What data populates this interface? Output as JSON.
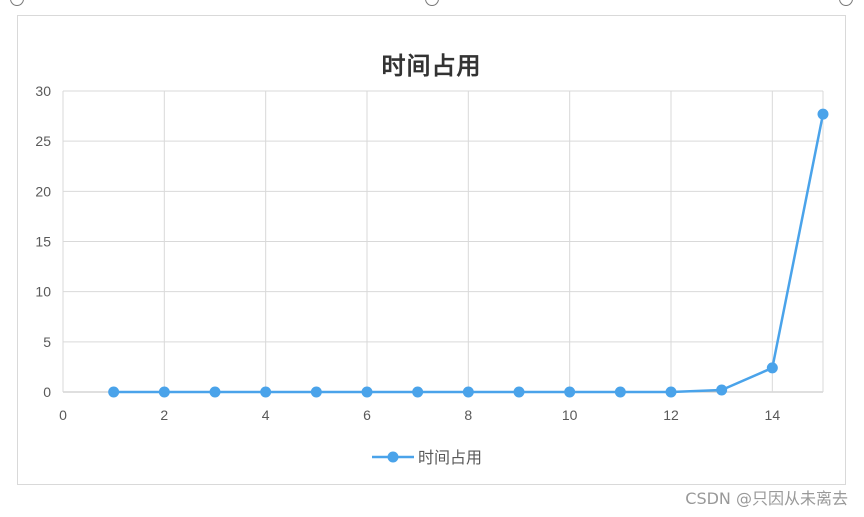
{
  "chart_data": {
    "type": "line",
    "title": "时间占用",
    "xlabel": "",
    "ylabel": "",
    "xlim": [
      0,
      15
    ],
    "ylim": [
      0,
      30
    ],
    "x_ticks": [
      0,
      2,
      4,
      6,
      8,
      10,
      12,
      14
    ],
    "y_ticks": [
      0,
      5,
      10,
      15,
      20,
      25,
      30
    ],
    "grid": true,
    "legend_position": "bottom",
    "series": [
      {
        "name": "时间占用",
        "color": "#4aa3ea",
        "x": [
          1,
          2,
          3,
          4,
          5,
          6,
          7,
          8,
          9,
          10,
          11,
          12,
          13,
          14,
          15
        ],
        "y": [
          0,
          0,
          0,
          0,
          0,
          0,
          0,
          0,
          0,
          0,
          0,
          0,
          0.2,
          2.4,
          27.7
        ]
      }
    ]
  },
  "watermark": "CSDN @只因从未离去"
}
